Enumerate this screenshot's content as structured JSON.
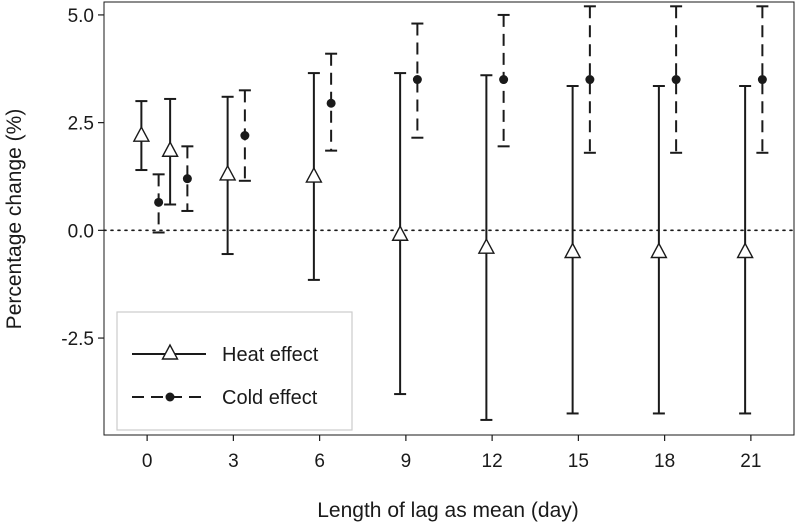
{
  "chart_data": {
    "type": "errorbar",
    "xlabel": "Length of lag as mean (day)",
    "ylabel": "Percentage change (%)",
    "x_ticks": [
      0,
      3,
      6,
      9,
      12,
      15,
      18,
      21
    ],
    "y_ticks": [
      -2.5,
      0.0,
      2.5,
      5.0
    ],
    "y_tick_labels": [
      "-2.5",
      "0.0",
      "2.5",
      "5.0"
    ],
    "xlim": [
      -1.5,
      22.5
    ],
    "ylim": [
      -4.75,
      5.3
    ],
    "reference_line": {
      "y": 0,
      "style": "dotted"
    },
    "grid": false,
    "legend_position": "bottom-left",
    "series": [
      {
        "name": "Heat effect",
        "marker": "open-triangle",
        "line_style": "solid",
        "color": "#1a1a1a",
        "x_offset": -0.2,
        "points": [
          {
            "x": 0,
            "y": 2.2,
            "lower": 1.4,
            "upper": 3.0
          },
          {
            "x": 1,
            "y": 1.85,
            "lower": 0.6,
            "upper": 3.05
          },
          {
            "x": 3,
            "y": 1.3,
            "lower": -0.55,
            "upper": 3.1
          },
          {
            "x": 6,
            "y": 1.25,
            "lower": -1.15,
            "upper": 3.65
          },
          {
            "x": 9,
            "y": -0.1,
            "lower": -3.8,
            "upper": 3.65
          },
          {
            "x": 12,
            "y": -0.4,
            "lower": -4.4,
            "upper": 3.6
          },
          {
            "x": 15,
            "y": -0.5,
            "lower": -4.25,
            "upper": 3.35
          },
          {
            "x": 18,
            "y": -0.5,
            "lower": -4.25,
            "upper": 3.35
          },
          {
            "x": 21,
            "y": -0.5,
            "lower": -4.25,
            "upper": 3.35
          }
        ]
      },
      {
        "name": "Cold effect",
        "marker": "filled-circle",
        "line_style": "dashed",
        "color": "#1a1a1a",
        "x_offset": 0.4,
        "points": [
          {
            "x": 0,
            "y": 0.65,
            "lower": -0.05,
            "upper": 1.3
          },
          {
            "x": 1,
            "y": 1.2,
            "lower": 0.45,
            "upper": 1.95
          },
          {
            "x": 3,
            "y": 2.2,
            "lower": 1.15,
            "upper": 3.25
          },
          {
            "x": 6,
            "y": 2.95,
            "lower": 1.85,
            "upper": 4.1
          },
          {
            "x": 9,
            "y": 3.5,
            "lower": 2.15,
            "upper": 4.8
          },
          {
            "x": 12,
            "y": 3.5,
            "lower": 1.95,
            "upper": 5.0
          },
          {
            "x": 15,
            "y": 3.5,
            "lower": 1.8,
            "upper": 5.2
          },
          {
            "x": 18,
            "y": 3.5,
            "lower": 1.8,
            "upper": 5.2
          },
          {
            "x": 21,
            "y": 3.5,
            "lower": 1.8,
            "upper": 5.2
          }
        ]
      }
    ]
  }
}
